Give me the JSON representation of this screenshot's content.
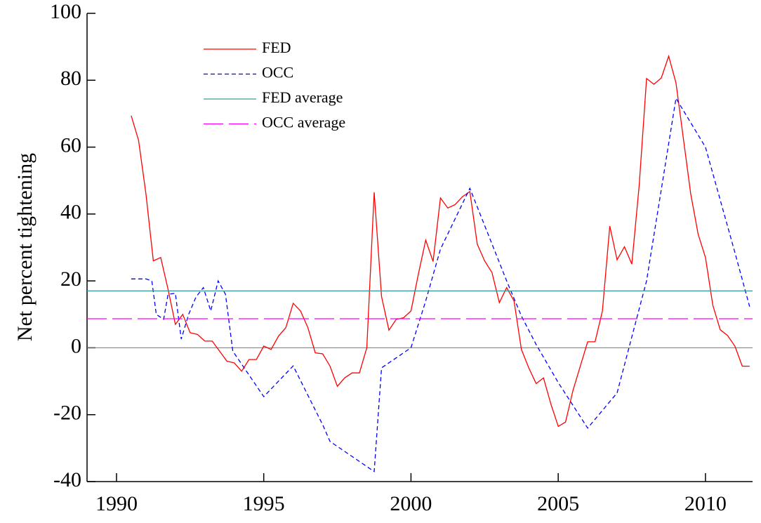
{
  "chart_data": {
    "type": "line",
    "y_label": "Net percent tightening",
    "xlim": [
      1989,
      2011.6
    ],
    "xticks": [
      1990,
      1995,
      2000,
      2005,
      2010
    ],
    "ylim": [
      -40,
      100
    ],
    "yticks": [
      -40,
      -20,
      0,
      20,
      40,
      60,
      80,
      100
    ],
    "legend": "upper-left",
    "series": [
      {
        "name": "FED",
        "color": "#ff0000",
        "style": "solid",
        "x": [
          1990.5,
          1990.75,
          1991,
          1991.25,
          1991.5,
          1991.75,
          1992,
          1992.25,
          1992.5,
          1992.75,
          1993,
          1993.25,
          1993.5,
          1993.75,
          1994,
          1994.25,
          1994.5,
          1994.75,
          1995,
          1995.25,
          1995.5,
          1995.75,
          1996,
          1996.25,
          1996.5,
          1996.75,
          1997,
          1997.25,
          1997.5,
          1997.75,
          1998,
          1998.25,
          1998.5,
          1998.75,
          1999,
          1999.25,
          1999.5,
          1999.75,
          2000,
          2000.25,
          2000.5,
          2000.75,
          2001,
          2001.25,
          2001.5,
          2001.75,
          2002,
          2002.25,
          2002.5,
          2002.75,
          2003,
          2003.25,
          2003.5,
          2003.75,
          2004,
          2004.25,
          2004.5,
          2004.75,
          2005,
          2005.25,
          2005.5,
          2005.75,
          2006,
          2006.25,
          2006.5,
          2006.75,
          2007,
          2007.25,
          2007.5,
          2007.75,
          2008,
          2008.25,
          2008.5,
          2008.75,
          2009,
          2009.25,
          2009.5,
          2009.75,
          2010,
          2010.25,
          2010.5,
          2010.75,
          2011,
          2011.25,
          2011.5
        ],
        "values": [
          69.4,
          62,
          46,
          26,
          27,
          17.5,
          7,
          10,
          4.5,
          4,
          2,
          2,
          -1,
          -4,
          -4.5,
          -7,
          -3.5,
          -3.5,
          0.5,
          -0.5,
          3.5,
          6,
          13.3,
          11,
          6,
          -1.5,
          -1.8,
          -5.5,
          -11.5,
          -9,
          -7.5,
          -7.5,
          0,
          46.5,
          15.3,
          5.3,
          8.5,
          9,
          11,
          22,
          32.2,
          25.8,
          44.8,
          41.8,
          42.8,
          45.2,
          46.7,
          31,
          26,
          22.5,
          13.5,
          18,
          14,
          -0.5,
          -6,
          -10.7,
          -9,
          -16.8,
          -23.5,
          -22.2,
          -12.8,
          -5.5,
          1.8,
          1.8,
          11,
          36.4,
          26.3,
          30.2,
          25,
          48.6,
          80.5,
          78.8,
          80.7,
          87.2,
          79.2,
          62.6,
          46,
          34,
          27,
          12.7,
          5.4,
          3.7,
          0.5,
          -5.5,
          -5.5
        ]
      },
      {
        "name": "OCC",
        "color": "#0000ff",
        "style": "dashed",
        "x": [
          1990.5,
          1991,
          1991.2,
          1991.35,
          1991.6,
          1991.75,
          1992,
          1992.2,
          1992.45,
          1992.7,
          1992.95,
          1993.2,
          1993.45,
          1993.7,
          1993.95,
          1995,
          1996,
          1997,
          1997.25,
          1998.75,
          1999,
          2000,
          2000.5,
          2001,
          2002,
          2003.25,
          2003.75,
          2004.25,
          2005,
          2006,
          2007,
          2008,
          2009,
          2010,
          2011,
          2011.5
        ],
        "values": [
          20.6,
          20.6,
          20,
          10,
          8.5,
          16,
          16.3,
          2.6,
          10,
          15.2,
          18,
          11,
          20,
          16,
          -1,
          -14.6,
          -5.4,
          -23,
          -28,
          -37,
          -6,
          0,
          14,
          29.5,
          47.7,
          20,
          9.5,
          1,
          -10.4,
          -24,
          -13.5,
          20,
          74.6,
          60,
          28.5,
          12.3
        ]
      },
      {
        "name": "FED average",
        "color": "#3a9a9a",
        "style": "solid",
        "value": 17
      },
      {
        "name": "OCC average",
        "color": "#ff00ff",
        "style": "long-dashed",
        "value": 8.7
      }
    ]
  }
}
